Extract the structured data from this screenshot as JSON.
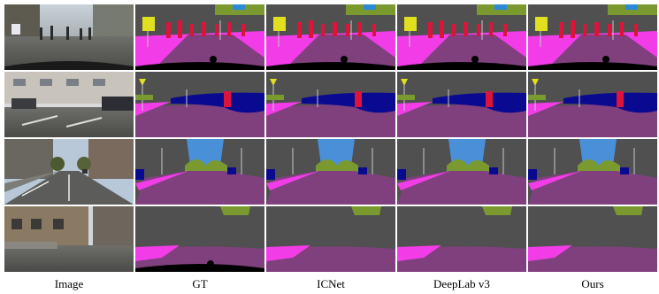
{
  "columns": [
    "Image",
    "GT",
    "ICNet",
    "DeepLab v3",
    "Ours"
  ]
}
